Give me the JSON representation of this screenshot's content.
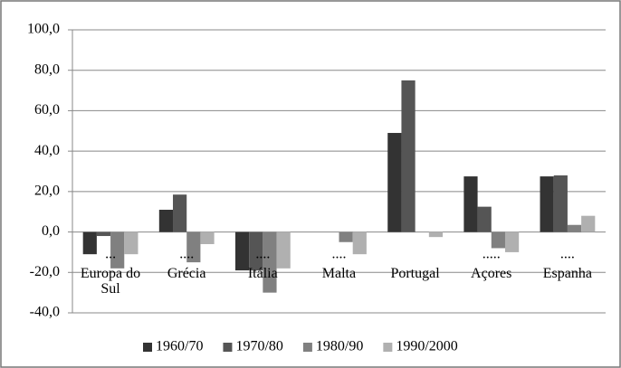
{
  "chart_data": {
    "type": "bar",
    "categories": [
      "Europa do Sul",
      "Grécia",
      "Itália",
      "Malta",
      "Portugal",
      "Açores",
      "Espanha"
    ],
    "category_marks": [
      "...",
      "....",
      "....",
      "....",
      null,
      ".....",
      "...."
    ],
    "series": [
      {
        "name": "1960/70",
        "color": "#333333",
        "values": [
          -11,
          11,
          -19,
          null,
          49,
          27.5,
          27.5
        ]
      },
      {
        "name": "1970/80",
        "color": "#555555",
        "values": [
          -2,
          18.5,
          -19,
          null,
          75,
          12.5,
          28
        ]
      },
      {
        "name": "1980/90",
        "color": "#808080",
        "values": [
          -18,
          -15,
          -30,
          -5,
          null,
          -8,
          3.5
        ]
      },
      {
        "name": "1990/2000",
        "color": "#b0b0b0",
        "values": [
          -11,
          -6,
          -18,
          -11,
          -2.5,
          -10,
          8
        ]
      }
    ],
    "ylim": [
      -40,
      100
    ],
    "yticks": [
      {
        "value": -40,
        "label": "-40,0"
      },
      {
        "value": -20,
        "label": "-20,0"
      },
      {
        "value": 0,
        "label": "0,0"
      },
      {
        "value": 20,
        "label": "20,0"
      },
      {
        "value": 40,
        "label": "40,0"
      },
      {
        "value": 60,
        "label": "60,0"
      },
      {
        "value": 80,
        "label": "80,0"
      },
      {
        "value": 100,
        "label": "100,0"
      }
    ],
    "grid": true,
    "legend": "bottom"
  }
}
